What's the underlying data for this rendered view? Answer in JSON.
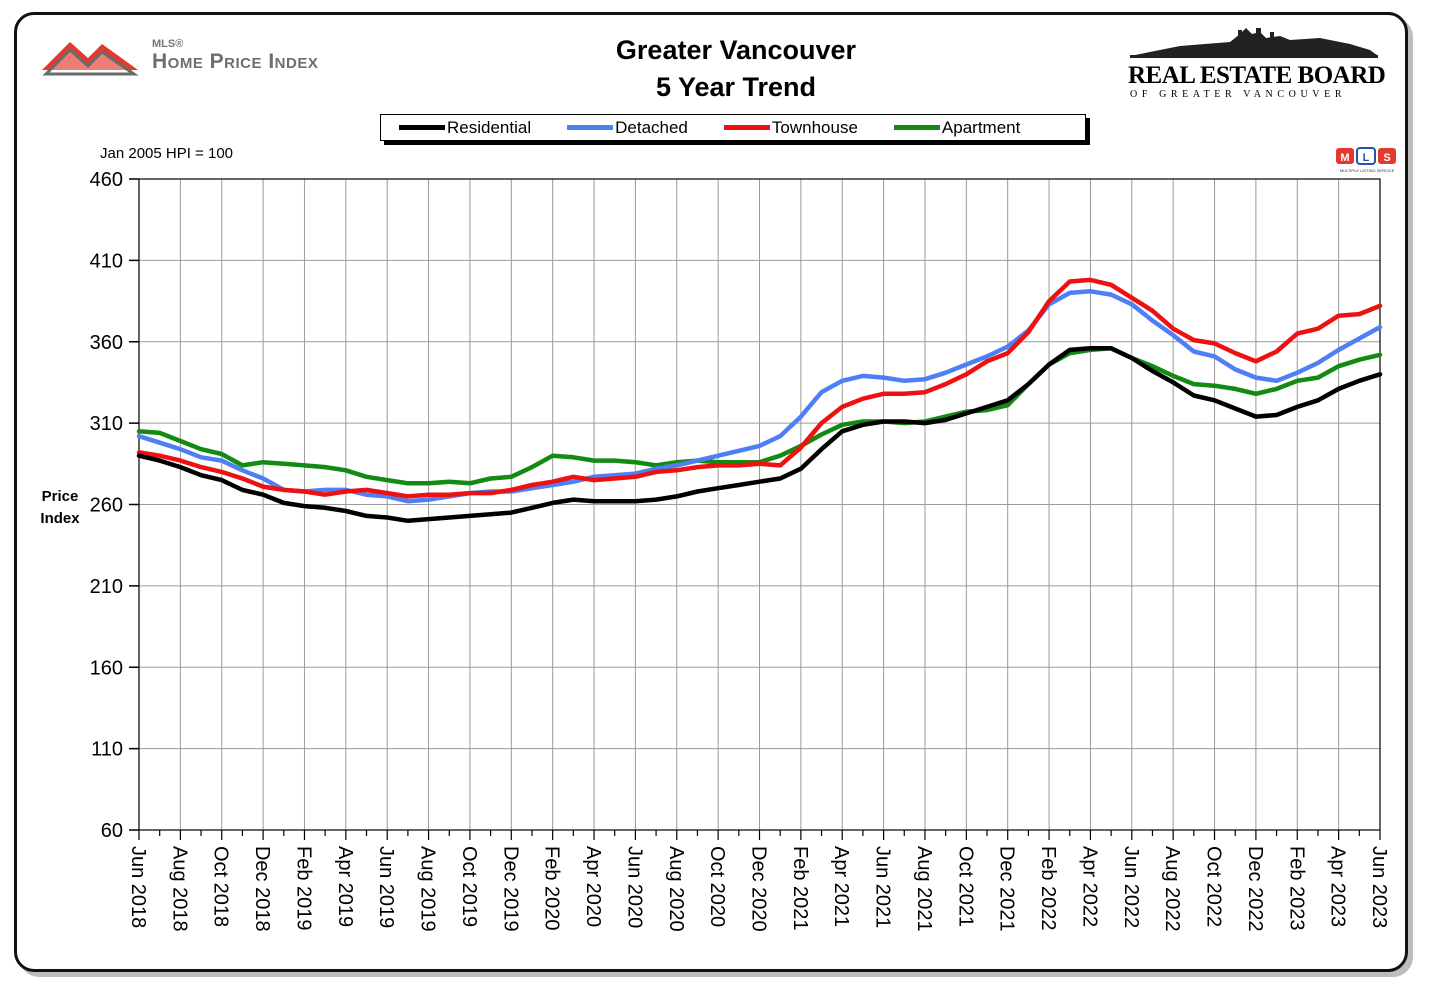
{
  "header": {
    "title_line1": "Greater Vancouver",
    "title_line2": "5 Year Trend",
    "hpi_logo_small": "MLS®",
    "hpi_logo_text": "Home Price Index",
    "board_name": "REAL ESTATE BOARD",
    "board_sub": "OF GREATER VANCOUVER",
    "mls_badge_text": "MULTIPLE LISTING SERVICE"
  },
  "note": "Jan 2005 HPI = 100",
  "colors": {
    "residential": "#000000",
    "detached": "#4f7ff5",
    "townhouse": "#ee1111",
    "apartment": "#138a13",
    "grid": "#9a9a9a"
  },
  "chart_data": {
    "type": "line",
    "title": "Greater Vancouver 5 Year Trend",
    "ylabel": "Price Index",
    "xlabel": "",
    "ylim": [
      60,
      460
    ],
    "yticks": [
      60,
      110,
      160,
      210,
      260,
      310,
      360,
      410,
      460
    ],
    "x": [
      "Jun 2018",
      "Jul 2018",
      "Aug 2018",
      "Sep 2018",
      "Oct 2018",
      "Nov 2018",
      "Dec 2018",
      "Jan 2019",
      "Feb 2019",
      "Mar 2019",
      "Apr 2019",
      "May 2019",
      "Jun 2019",
      "Jul 2019",
      "Aug 2019",
      "Sep 2019",
      "Oct 2019",
      "Nov 2019",
      "Dec 2019",
      "Jan 2020",
      "Feb 2020",
      "Mar 2020",
      "Apr 2020",
      "May 2020",
      "Jun 2020",
      "Jul 2020",
      "Aug 2020",
      "Sep 2020",
      "Oct 2020",
      "Nov 2020",
      "Dec 2020",
      "Jan 2021",
      "Feb 2021",
      "Mar 2021",
      "Apr 2021",
      "May 2021",
      "Jun 2021",
      "Jul 2021",
      "Aug 2021",
      "Sep 2021",
      "Oct 2021",
      "Nov 2021",
      "Dec 2021",
      "Jan 2022",
      "Feb 2022",
      "Mar 2022",
      "Apr 2022",
      "May 2022",
      "Jun 2022",
      "Jul 2022",
      "Aug 2022",
      "Sep 2022",
      "Oct 2022",
      "Nov 2022",
      "Dec 2022",
      "Jan 2023",
      "Feb 2023",
      "Mar 2023",
      "Apr 2023",
      "May 2023",
      "Jun 2023"
    ],
    "xtick_labels": [
      "Jun 2018",
      "Aug 2018",
      "Oct 2018",
      "Dec 2018",
      "Feb 2019",
      "Apr 2019",
      "Jun 2019",
      "Aug 2019",
      "Oct 2019",
      "Dec 2019",
      "Feb 2020",
      "Apr 2020",
      "Jun 2020",
      "Aug 2020",
      "Oct 2020",
      "Dec 2020",
      "Feb 2021",
      "Apr 2021",
      "Jun 2021",
      "Aug 2021",
      "Oct 2021",
      "Dec 2021",
      "Feb 2022",
      "Apr 2022",
      "Jun 2022",
      "Aug 2022",
      "Oct 2022",
      "Dec 2022",
      "Feb 2023",
      "Apr 2023",
      "Jun 2023"
    ],
    "series": [
      {
        "name": "Residential",
        "key": "residential",
        "values": [
          290,
          287,
          283,
          278,
          275,
          269,
          266,
          261,
          259,
          258,
          256,
          253,
          252,
          250,
          251,
          252,
          253,
          254,
          255,
          258,
          261,
          263,
          262,
          262,
          262,
          263,
          265,
          268,
          270,
          272,
          274,
          276,
          282,
          294,
          305,
          309,
          311,
          311,
          310,
          312,
          316,
          320,
          324,
          334,
          346,
          355,
          356,
          356,
          350,
          342,
          335,
          327,
          324,
          319,
          314,
          315,
          320,
          324,
          331,
          336,
          340
        ],
        "color": "#000000"
      },
      {
        "name": "Detached",
        "key": "detached",
        "values": [
          302,
          298,
          294,
          289,
          287,
          281,
          276,
          269,
          268,
          269,
          269,
          266,
          265,
          262,
          263,
          265,
          267,
          268,
          268,
          270,
          272,
          274,
          277,
          278,
          279,
          282,
          284,
          287,
          290,
          293,
          296,
          302,
          314,
          329,
          336,
          339,
          338,
          336,
          337,
          341,
          346,
          351,
          357,
          367,
          383,
          390,
          391,
          389,
          383,
          373,
          364,
          354,
          351,
          343,
          338,
          336,
          341,
          347,
          355,
          362,
          369
        ],
        "color": "#4f7ff5"
      },
      {
        "name": "Townhouse",
        "key": "townhouse",
        "values": [
          292,
          290,
          287,
          283,
          280,
          276,
          271,
          269,
          268,
          266,
          268,
          269,
          267,
          265,
          266,
          266,
          267,
          267,
          269,
          272,
          274,
          277,
          275,
          276,
          277,
          280,
          281,
          283,
          284,
          284,
          285,
          284,
          295,
          310,
          320,
          325,
          328,
          328,
          329,
          334,
          340,
          348,
          353,
          366,
          385,
          397,
          398,
          395,
          387,
          379,
          368,
          361,
          359,
          353,
          348,
          354,
          365,
          368,
          376,
          377,
          382
        ],
        "color": "#ee1111"
      },
      {
        "name": "Apartment",
        "key": "apartment",
        "values": [
          305,
          304,
          299,
          294,
          291,
          284,
          286,
          285,
          284,
          283,
          281,
          277,
          275,
          273,
          273,
          274,
          273,
          276,
          277,
          283,
          290,
          289,
          287,
          287,
          286,
          284,
          286,
          287,
          286,
          286,
          286,
          290,
          296,
          303,
          309,
          311,
          311,
          310,
          311,
          314,
          317,
          318,
          321,
          334,
          346,
          353,
          355,
          356,
          350,
          345,
          339,
          334,
          333,
          331,
          328,
          331,
          336,
          338,
          345,
          349,
          352
        ],
        "color": "#138a13"
      }
    ]
  }
}
